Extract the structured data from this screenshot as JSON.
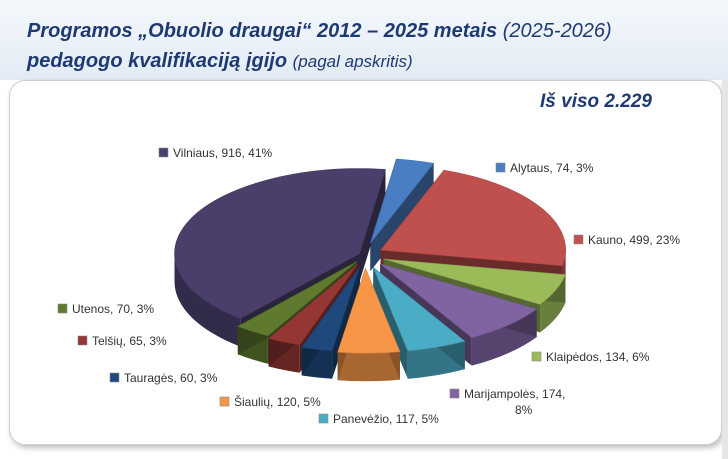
{
  "header": {
    "title_bold": "Programos „Obuolio draugai“  2012 – 2025 metais",
    "title_regular": "(2025-2026)",
    "subtitle_bold": "pedagogo kvalifikaciją įgijo",
    "subtitle_regular": "(pagal apskritis)"
  },
  "total_label": "Iš viso 2.229",
  "chart_data": {
    "type": "pie",
    "title": "",
    "three_d": true,
    "legend": "none",
    "series": [
      {
        "name": "",
        "categories": [
          "Alytaus",
          "Kauno",
          "Klaipėdos",
          "Marijampolės",
          "Panevėžio",
          "Šiaulių",
          "Tauragės",
          "Telšių",
          "Utenos",
          "Vilniaus"
        ],
        "values": [
          74,
          499,
          134,
          174,
          117,
          120,
          60,
          65,
          70,
          916
        ],
        "percent_labels": [
          "3%",
          "23%",
          "6%",
          "8%",
          "5%",
          "5%",
          "3%",
          "3%",
          "3%",
          "41%"
        ],
        "colors": [
          "#4a7ec2",
          "#c0504d",
          "#9bbb59",
          "#8064a2",
          "#4bacc6",
          "#f79646",
          "#1f497d",
          "#943634",
          "#5f7a2e",
          "#4a3f6b"
        ]
      }
    ],
    "data_labels": [
      "Alytaus, 74, 3%",
      "Kauno, 499, 23%",
      "Klaipėdos, 134, 6%",
      "Marijampolės, 174,",
      "8%",
      "Panevėžio, 117, 5%",
      "Šiaulių, 120, 5%",
      "Tauragės, 60, 3%",
      "Telšių, 65, 3%",
      "Utenos, 70, 3%",
      "Vilniaus, 916, 41%"
    ]
  }
}
